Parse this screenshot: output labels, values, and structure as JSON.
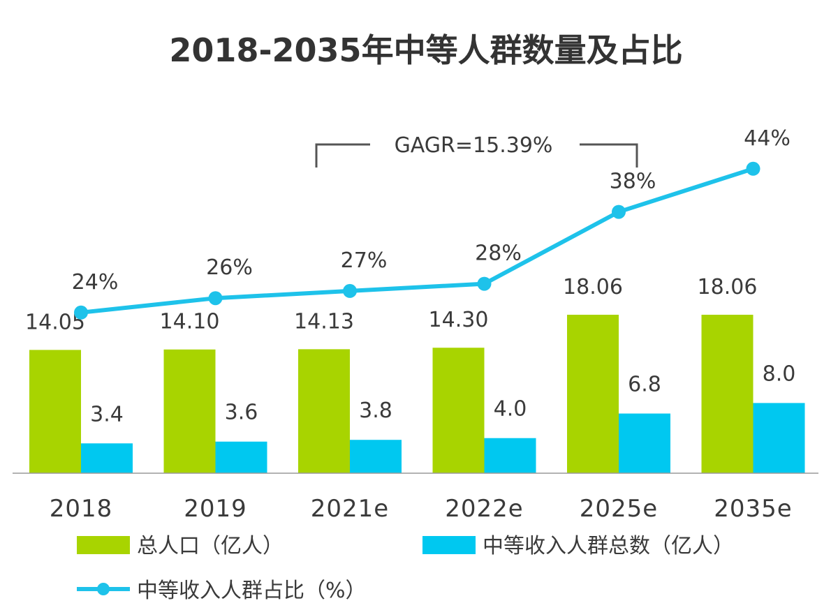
{
  "chart_data": {
    "type": "bar",
    "title": "2018-2035年中等人群数量及占比",
    "categories": [
      "2018",
      "2019",
      "2021e",
      "2022e",
      "2025e",
      "2035e"
    ],
    "series": [
      {
        "name": "总人口（亿人）",
        "kind": "bar",
        "color": "#a8d400",
        "values": [
          14.05,
          14.1,
          14.13,
          14.3,
          18.06,
          18.06
        ],
        "labels": [
          "14.05",
          "14.10",
          "14.13",
          "14.30",
          "18.06",
          "18.06"
        ]
      },
      {
        "name": "中等收入人群总数（亿人）",
        "kind": "bar",
        "color": "#00c8f0",
        "values": [
          3.4,
          3.6,
          3.8,
          4.0,
          6.8,
          8.0
        ],
        "labels": [
          "3.4",
          "3.6",
          "3.8",
          "4.0",
          "6.8",
          "8.0"
        ]
      },
      {
        "name": "中等收入人群占比（%）",
        "kind": "line",
        "color": "#1ec2ea",
        "values": [
          24,
          26,
          27,
          28,
          38,
          44
        ],
        "labels": [
          "24%",
          "26%",
          "27%",
          "28%",
          "38%",
          "44%"
        ]
      }
    ],
    "annotation": {
      "text": "GAGR=15.39%",
      "from_category": "2021e",
      "to_category": "2025e"
    },
    "bar_ylim": [
      0,
      20
    ],
    "line_ylim": [
      0,
      100
    ],
    "legend_position": "bottom",
    "grid": false
  }
}
